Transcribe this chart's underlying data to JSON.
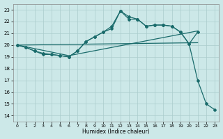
{
  "xlabel": "Humidex (Indice chaleur)",
  "xlim": [
    -0.5,
    23.5
  ],
  "ylim": [
    13.5,
    23.5
  ],
  "xticks": [
    0,
    1,
    2,
    3,
    4,
    5,
    6,
    7,
    8,
    9,
    10,
    11,
    12,
    13,
    14,
    15,
    16,
    17,
    18,
    19,
    20,
    21,
    22,
    23
  ],
  "yticks": [
    14,
    15,
    16,
    17,
    18,
    19,
    20,
    21,
    22,
    23
  ],
  "bg_color": "#cce8e8",
  "grid_color": "#aacccc",
  "line_color": "#1a6b6b",
  "line_width": 0.9,
  "marker": "D",
  "marker_size": 2.0,
  "line1_x": [
    0,
    1,
    2,
    3,
    4,
    5,
    6,
    7,
    8,
    9,
    10,
    11,
    12,
    13,
    14,
    15,
    16,
    17,
    18,
    19,
    20,
    21
  ],
  "line1_y": [
    20.0,
    19.8,
    19.5,
    19.2,
    19.2,
    19.1,
    19.0,
    19.5,
    20.3,
    20.7,
    21.1,
    21.6,
    22.9,
    22.4,
    22.2,
    21.6,
    21.7,
    21.7,
    21.6,
    21.1,
    20.1,
    21.1
  ],
  "line2_x": [
    0,
    1,
    2,
    3,
    4,
    5,
    6,
    7,
    8,
    9,
    10,
    11,
    12,
    13,
    14,
    15,
    16,
    17,
    18,
    19,
    20,
    21,
    22,
    23
  ],
  "line2_y": [
    20.0,
    19.8,
    19.5,
    19.3,
    19.2,
    19.1,
    19.0,
    19.5,
    20.3,
    20.7,
    21.1,
    21.4,
    22.9,
    22.2,
    22.2,
    21.6,
    21.7,
    21.7,
    21.6,
    21.1,
    20.1,
    17.0,
    15.0,
    14.5
  ],
  "line3_x": [
    0,
    21
  ],
  "line3_y": [
    20.0,
    20.2
  ],
  "line4_x": [
    0,
    6,
    21
  ],
  "line4_y": [
    20.0,
    19.1,
    21.2
  ]
}
